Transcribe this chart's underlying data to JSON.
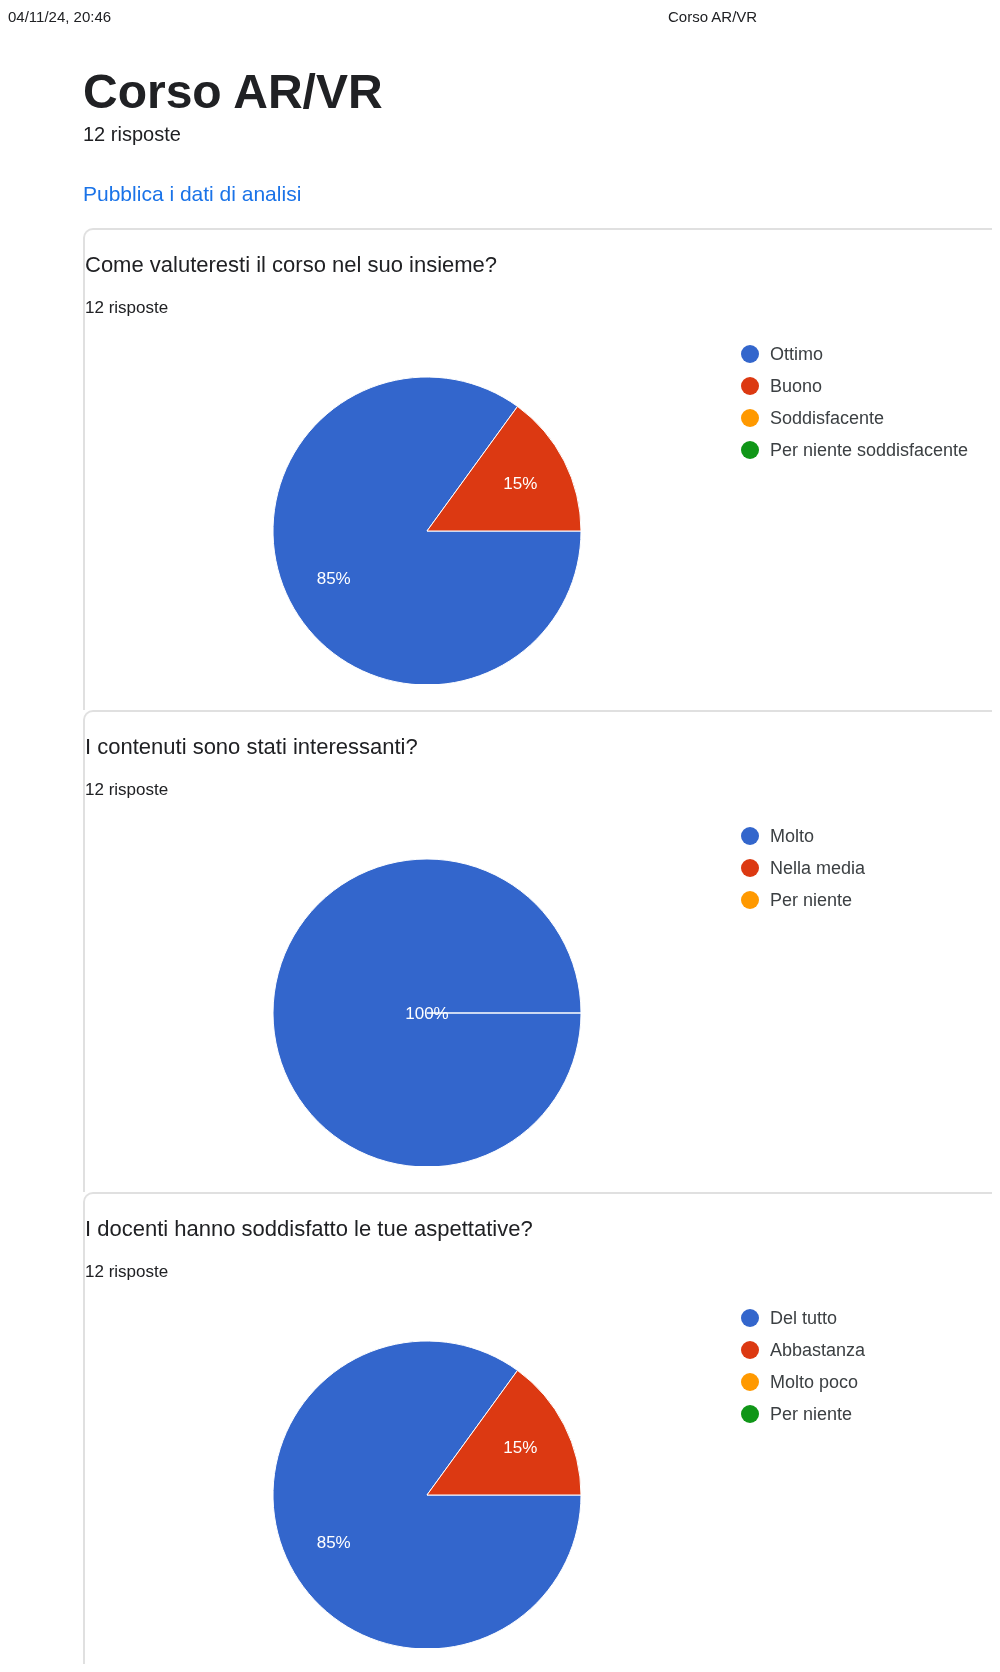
{
  "chart_data": [
    {
      "type": "pie",
      "title": "Come valuteresti il corso nel suo insieme?",
      "subtitle": "12 risposte",
      "annotations": [
        "04/11/24, 20:46",
        "Corso AR/VR",
        "Corso AR/VR",
        "12 risposte",
        "Pubblica i dati di analisi"
      ],
      "categories": [
        "Ottimo",
        "Buono",
        "Soddisfacente",
        "Per niente soddisfacente"
      ],
      "values": [
        85,
        15,
        0,
        0
      ],
      "value_labels": [
        "85%",
        "15%",
        null,
        null
      ],
      "colors": [
        "#3366cc",
        "#dc3912",
        "#ff9900",
        "#109618"
      ],
      "legend": "top right"
    },
    {
      "type": "pie",
      "title": "I contenuti sono stati interessanti?",
      "subtitle": "12 risposte",
      "categories": [
        "Molto",
        "Nella media",
        "Per niente"
      ],
      "values": [
        100,
        0,
        0
      ],
      "value_labels": [
        "100%",
        null,
        null
      ],
      "colors": [
        "#3366cc",
        "#dc3912",
        "#ff9900"
      ],
      "legend": "top right"
    },
    {
      "type": "pie",
      "title": "I docenti hanno soddisfatto le tue aspettative?",
      "subtitle": "12 risposte",
      "categories": [
        "Del tutto",
        "Abbastanza",
        "Molto poco",
        "Per niente"
      ],
      "values": [
        85,
        15,
        0,
        0
      ],
      "value_labels": [
        "85%",
        "15%",
        null,
        null
      ],
      "colors": [
        "#3366cc",
        "#dc3912",
        "#ff9900",
        "#109618"
      ],
      "legend": "top right"
    }
  ]
}
